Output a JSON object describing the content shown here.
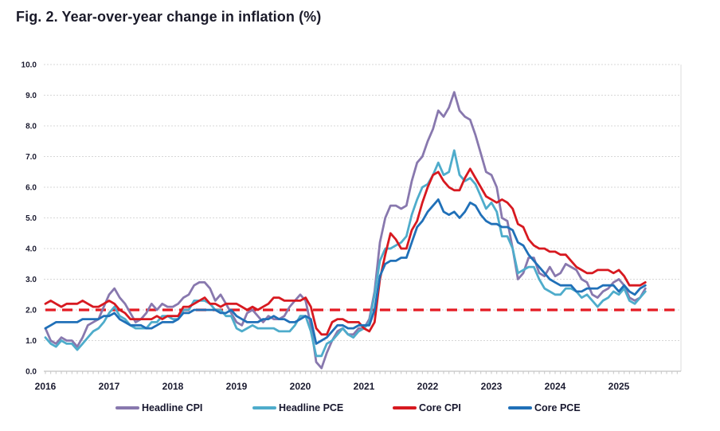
{
  "title": "Fig. 2. Year-over-year change in inflation (%)",
  "chart_data": {
    "type": "line",
    "title": "Fig. 2. Year-over-year change in inflation (%)",
    "x_frequency": "monthly",
    "x_start": "2016-01",
    "x_end": "2025-06",
    "xlabel": "",
    "ylabel": "",
    "ylim": [
      0,
      10
    ],
    "grid": true,
    "legend_position": "bottom",
    "ytick_labels": [
      "0.0",
      "1.0",
      "2.0",
      "3.0",
      "4.0",
      "5.0",
      "6.0",
      "7.0",
      "8.0",
      "9.0",
      "10.0"
    ],
    "xtick_labels": [
      "2016",
      "2017",
      "2018",
      "2019",
      "2020",
      "2021",
      "2022",
      "2023",
      "2024",
      "2025"
    ],
    "target_line": {
      "value": 2.0,
      "color": "#E41B23",
      "style": "dashed"
    },
    "series": [
      {
        "name": "Headline CPI",
        "color": "#8878AE",
        "values": [
          1.4,
          1.0,
          0.9,
          1.1,
          1.0,
          1.0,
          0.8,
          1.1,
          1.5,
          1.6,
          1.7,
          2.1,
          2.5,
          2.7,
          2.4,
          2.2,
          1.9,
          1.6,
          1.7,
          1.9,
          2.2,
          2.0,
          2.2,
          2.1,
          2.1,
          2.2,
          2.4,
          2.5,
          2.8,
          2.9,
          2.9,
          2.7,
          2.3,
          2.5,
          2.2,
          1.9,
          1.6,
          1.5,
          1.9,
          2.0,
          1.8,
          1.6,
          1.8,
          1.7,
          1.7,
          1.8,
          2.1,
          2.3,
          2.5,
          2.3,
          1.5,
          0.3,
          0.1,
          0.6,
          1.0,
          1.3,
          1.4,
          1.2,
          1.2,
          1.4,
          1.4,
          1.7,
          2.6,
          4.2,
          5.0,
          5.4,
          5.4,
          5.3,
          5.4,
          6.2,
          6.8,
          7.0,
          7.5,
          7.9,
          8.5,
          8.3,
          8.6,
          9.1,
          8.5,
          8.3,
          8.2,
          7.7,
          7.1,
          6.5,
          6.4,
          6.0,
          5.0,
          4.9,
          4.0,
          3.0,
          3.2,
          3.7,
          3.7,
          3.2,
          3.1,
          3.4,
          3.1,
          3.2,
          3.5,
          3.4,
          3.3,
          3.0,
          2.9,
          2.5,
          2.4,
          2.6,
          2.7,
          2.9,
          3.0,
          2.8,
          2.4,
          2.3,
          2.4,
          2.7
        ]
      },
      {
        "name": "Headline PCE",
        "color": "#4EACCB",
        "values": [
          1.1,
          0.9,
          0.8,
          1.0,
          0.9,
          0.9,
          0.7,
          0.9,
          1.1,
          1.3,
          1.4,
          1.6,
          1.9,
          2.1,
          1.8,
          1.7,
          1.5,
          1.4,
          1.4,
          1.4,
          1.6,
          1.6,
          1.8,
          1.8,
          1.7,
          1.7,
          2.0,
          2.0,
          2.3,
          2.3,
          2.3,
          2.2,
          2.0,
          2.0,
          1.8,
          1.8,
          1.4,
          1.3,
          1.4,
          1.5,
          1.4,
          1.4,
          1.4,
          1.4,
          1.3,
          1.3,
          1.3,
          1.5,
          1.8,
          1.8,
          1.3,
          0.5,
          0.5,
          0.9,
          1.0,
          1.2,
          1.4,
          1.2,
          1.1,
          1.3,
          1.4,
          1.6,
          2.5,
          3.6,
          4.0,
          4.0,
          4.1,
          4.2,
          4.4,
          5.1,
          5.6,
          6.0,
          6.1,
          6.4,
          6.8,
          6.4,
          6.5,
          7.2,
          6.4,
          6.2,
          6.3,
          6.1,
          5.7,
          5.3,
          5.5,
          5.2,
          4.4,
          4.4,
          4.0,
          3.2,
          3.3,
          3.4,
          3.4,
          3.0,
          2.7,
          2.6,
          2.5,
          2.5,
          2.7,
          2.7,
          2.6,
          2.4,
          2.5,
          2.3,
          2.1,
          2.3,
          2.4,
          2.6,
          2.5,
          2.7,
          2.3,
          2.2,
          2.4,
          2.6
        ]
      },
      {
        "name": "Core CPI",
        "color": "#D71920",
        "values": [
          2.2,
          2.3,
          2.2,
          2.1,
          2.2,
          2.2,
          2.2,
          2.3,
          2.2,
          2.1,
          2.1,
          2.2,
          2.3,
          2.2,
          2.0,
          1.9,
          1.7,
          1.7,
          1.7,
          1.7,
          1.7,
          1.8,
          1.7,
          1.8,
          1.8,
          1.8,
          2.1,
          2.1,
          2.2,
          2.3,
          2.4,
          2.2,
          2.2,
          2.1,
          2.2,
          2.2,
          2.2,
          2.1,
          2.0,
          2.1,
          2.0,
          2.1,
          2.2,
          2.4,
          2.4,
          2.3,
          2.3,
          2.3,
          2.3,
          2.4,
          2.1,
          1.4,
          1.2,
          1.2,
          1.6,
          1.7,
          1.7,
          1.6,
          1.6,
          1.6,
          1.4,
          1.3,
          1.6,
          3.0,
          3.8,
          4.5,
          4.3,
          4.0,
          4.0,
          4.6,
          4.9,
          5.5,
          6.0,
          6.4,
          6.5,
          6.2,
          6.0,
          5.9,
          5.9,
          6.3,
          6.6,
          6.3,
          6.0,
          5.7,
          5.6,
          5.5,
          5.6,
          5.5,
          5.3,
          4.8,
          4.7,
          4.3,
          4.1,
          4.0,
          4.0,
          3.9,
          3.9,
          3.8,
          3.8,
          3.6,
          3.4,
          3.3,
          3.2,
          3.2,
          3.3,
          3.3,
          3.3,
          3.2,
          3.3,
          3.1,
          2.8,
          2.8,
          2.8,
          2.9
        ]
      },
      {
        "name": "Core PCE",
        "color": "#2070B8",
        "values": [
          1.4,
          1.5,
          1.6,
          1.6,
          1.6,
          1.6,
          1.6,
          1.7,
          1.7,
          1.7,
          1.7,
          1.8,
          1.8,
          1.9,
          1.7,
          1.6,
          1.5,
          1.5,
          1.5,
          1.4,
          1.4,
          1.5,
          1.6,
          1.6,
          1.6,
          1.7,
          1.9,
          1.9,
          2.0,
          2.0,
          2.0,
          2.0,
          2.0,
          1.9,
          1.9,
          2.0,
          1.8,
          1.7,
          1.6,
          1.6,
          1.6,
          1.7,
          1.7,
          1.8,
          1.7,
          1.7,
          1.6,
          1.6,
          1.7,
          1.8,
          1.7,
          0.9,
          1.0,
          1.1,
          1.3,
          1.5,
          1.5,
          1.4,
          1.4,
          1.5,
          1.5,
          1.5,
          2.0,
          3.1,
          3.5,
          3.6,
          3.6,
          3.7,
          3.7,
          4.2,
          4.7,
          4.9,
          5.2,
          5.4,
          5.6,
          5.2,
          5.1,
          5.2,
          5.0,
          5.2,
          5.5,
          5.4,
          5.1,
          4.9,
          4.8,
          4.8,
          4.7,
          4.7,
          4.6,
          4.2,
          4.1,
          3.8,
          3.6,
          3.4,
          3.2,
          3.0,
          2.9,
          2.8,
          2.8,
          2.8,
          2.6,
          2.6,
          2.7,
          2.7,
          2.7,
          2.8,
          2.8,
          2.8,
          2.6,
          2.8,
          2.6,
          2.5,
          2.7,
          2.8
        ]
      }
    ]
  }
}
